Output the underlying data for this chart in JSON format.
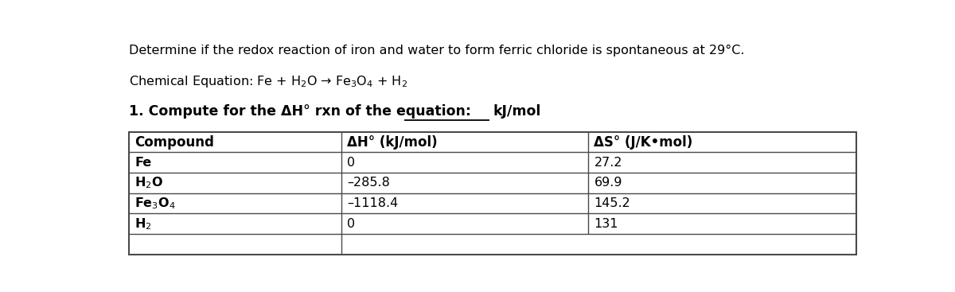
{
  "title_line": "Determine if the redox reaction of iron and water to form ferric chloride is spontaneous at 29°C.",
  "chem_eq": "Chemical Equation: Fe + H$_{2}$O → Fe$_{3}$O$_{4}$ + H$_{2}$",
  "step_label": "1. Compute for the ΔH° rxn of the equation:",
  "step_unit": "kJ/mol",
  "col_headers": [
    "Compound",
    "ΔH° (kJ/mol)",
    "ΔS° (J/K•mol)"
  ],
  "compounds_display": [
    "Fe",
    "H$_{2}$O",
    "Fe$_{3}$O$_{4}$",
    "H$_{2}$"
  ],
  "dH_display": [
    "0",
    "–285.8",
    "–1118.4",
    "0"
  ],
  "dS_values": [
    "27.2",
    "69.9",
    "145.2",
    "131"
  ],
  "background_color": "#ffffff",
  "text_color": "#000000",
  "border_color": "#4a4a4a",
  "font_size_title": 11.5,
  "font_size_eq": 11.5,
  "font_size_step": 12.5,
  "font_size_table_header": 12,
  "font_size_table_data": 11.5
}
